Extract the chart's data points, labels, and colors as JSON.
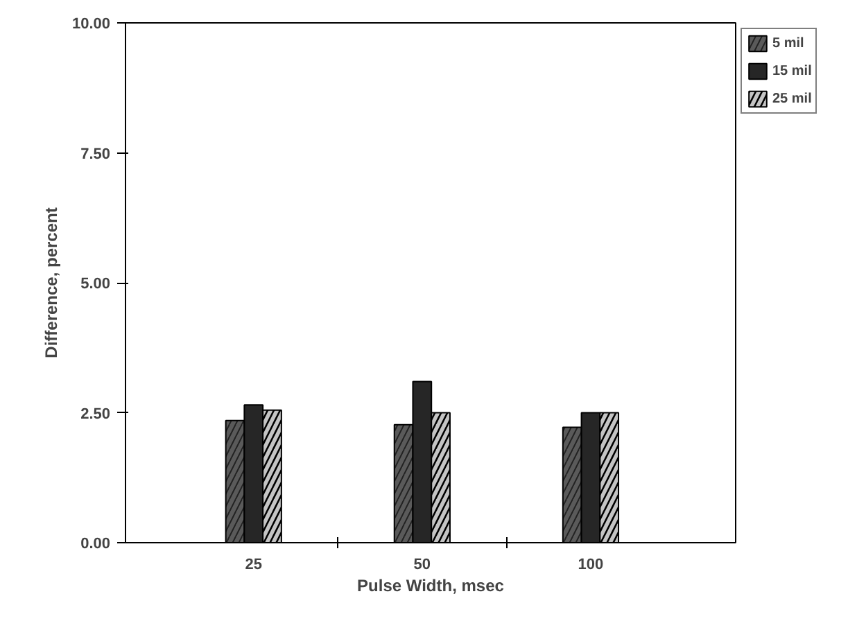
{
  "chart_data": {
    "type": "bar",
    "xlabel": "Pulse Width, msec",
    "ylabel": "Difference, percent",
    "categories": [
      "25",
      "50",
      "100"
    ],
    "series": [
      {
        "name": "5 mil",
        "color": "#5a5a5a",
        "values": [
          2.35,
          2.27,
          2.22
        ]
      },
      {
        "name": "15 mil",
        "color": "#262626",
        "values": [
          2.65,
          3.1,
          2.5
        ]
      },
      {
        "name": "25 mil",
        "color": "#c4c4c4",
        "values": [
          2.55,
          2.5,
          2.5
        ]
      }
    ],
    "ylim": [
      0,
      10
    ],
    "yticks": [
      {
        "value": 0,
        "label": "0.00"
      },
      {
        "value": 2.5,
        "label": "2.50"
      },
      {
        "value": 5,
        "label": "5.00"
      },
      {
        "value": 7.5,
        "label": "7.50"
      },
      {
        "value": 10,
        "label": "10.00"
      }
    ],
    "legend": "top right"
  }
}
